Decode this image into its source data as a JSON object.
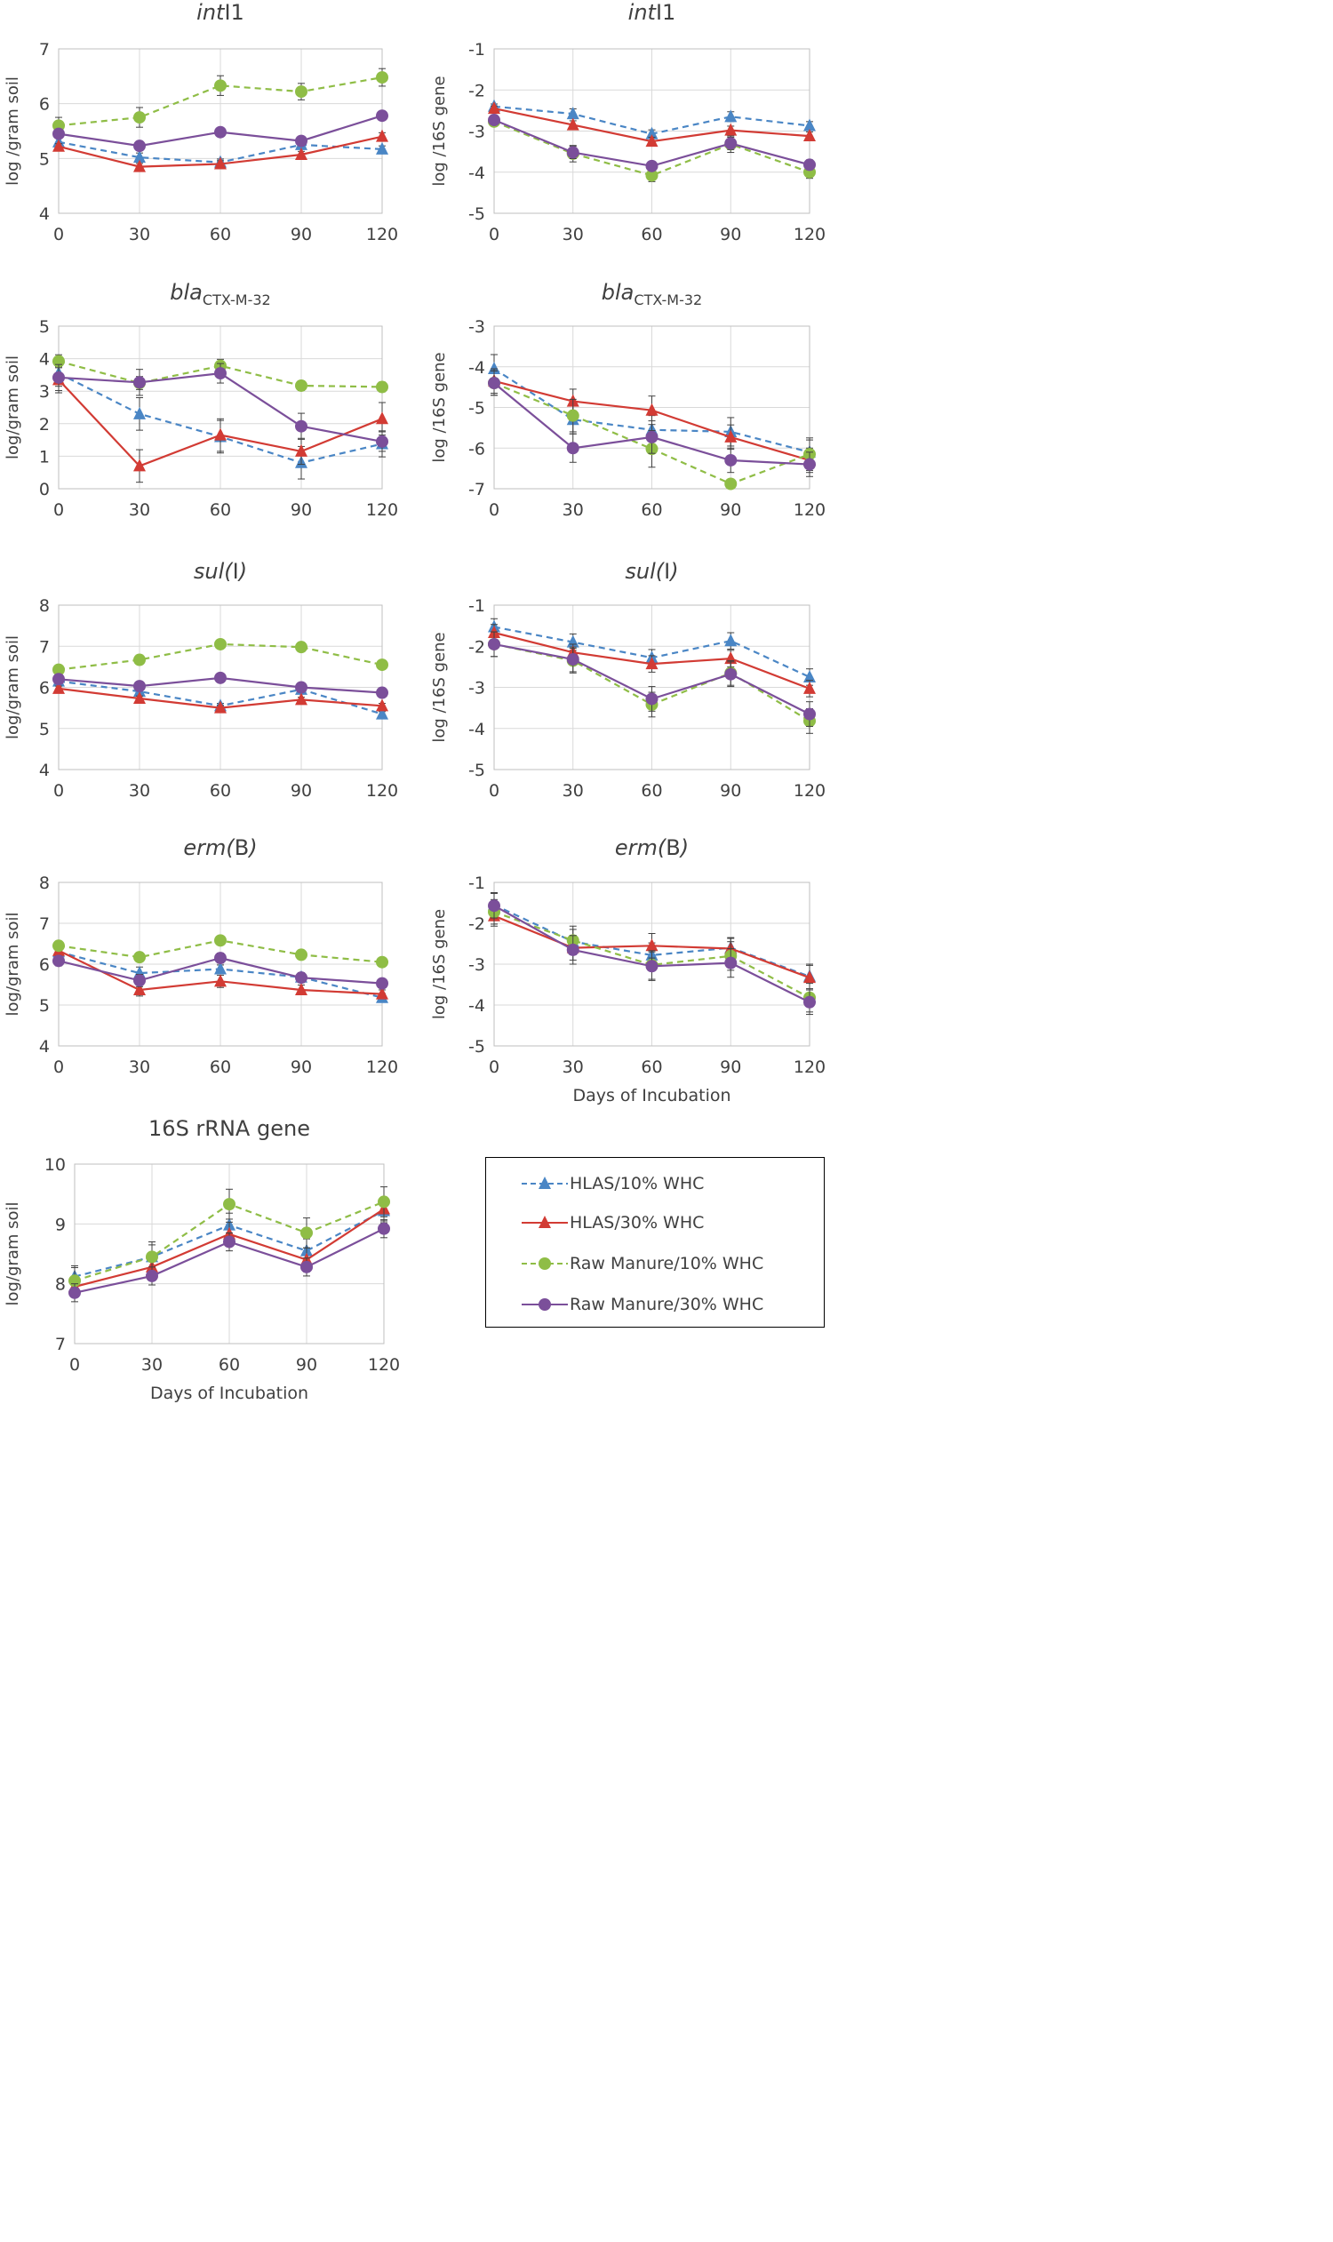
{
  "series_styles": [
    {
      "name": "HLAS/10% WHC",
      "color": "#4a86c5",
      "dashed": true,
      "marker": "triangle"
    },
    {
      "name": "HLAS/30% WHC",
      "color": "#d23b34",
      "dashed": false,
      "marker": "triangle"
    },
    {
      "name": "Raw Manure/10% WHC",
      "color": "#8fbd46",
      "dashed": true,
      "marker": "circle"
    },
    {
      "name": "Raw Manure/30% WHC",
      "color": "#7b4f9a",
      "dashed": false,
      "marker": "circle"
    }
  ],
  "legend": {
    "items": [
      "HLAS/10% WHC",
      "HLAS/30% WHC",
      "Raw Manure/10% WHC",
      "Raw Manure/30% WHC"
    ]
  },
  "chart_data": [
    {
      "type": "line",
      "id": "intl1-soil",
      "title_parts": [
        {
          "t": "int",
          "style": "italic"
        },
        {
          "t": "I1",
          "style": "normal"
        }
      ],
      "xlabel": "",
      "ylabel": "log /gram soil",
      "x": [
        0,
        30,
        60,
        90,
        120
      ],
      "ylim": [
        4,
        7
      ],
      "yticks": [
        4,
        5,
        6,
        7
      ],
      "series": [
        {
          "name": "HLAS/10% WHC",
          "values": [
            5.3,
            5.02,
            4.93,
            5.25,
            5.17
          ],
          "errors": [
            0.07,
            0.08,
            0.06,
            0.07,
            0.06
          ]
        },
        {
          "name": "HLAS/30% WHC",
          "values": [
            5.22,
            4.85,
            4.9,
            5.07,
            5.4
          ],
          "errors": [
            0.05,
            0.06,
            0.06,
            0.06,
            0.07
          ]
        },
        {
          "name": "Raw Manure/10% WHC",
          "values": [
            5.6,
            5.75,
            6.33,
            6.22,
            6.48
          ],
          "errors": [
            0.15,
            0.18,
            0.18,
            0.15,
            0.16
          ]
        },
        {
          "name": "Raw Manure/30% WHC",
          "values": [
            5.45,
            5.23,
            5.48,
            5.32,
            5.78
          ],
          "errors": [
            0.07,
            0.07,
            0.07,
            0.07,
            0.06
          ]
        }
      ]
    },
    {
      "type": "line",
      "id": "intl1-16s",
      "title_parts": [
        {
          "t": "int",
          "style": "italic"
        },
        {
          "t": "I1",
          "style": "normal"
        }
      ],
      "xlabel": "",
      "ylabel": "log /16S gene",
      "x": [
        0,
        30,
        60,
        90,
        120
      ],
      "ylim": [
        -5,
        -1
      ],
      "yticks": [
        -5,
        -4,
        -3,
        -2,
        -1
      ],
      "series": [
        {
          "name": "HLAS/10% WHC",
          "values": [
            -2.4,
            -2.58,
            -3.07,
            -2.65,
            -2.87
          ],
          "errors": [
            0.06,
            0.12,
            0.1,
            0.12,
            0.1
          ]
        },
        {
          "name": "HLAS/30% WHC",
          "values": [
            -2.45,
            -2.85,
            -3.25,
            -2.98,
            -3.12
          ],
          "errors": [
            0.06,
            0.1,
            0.1,
            0.1,
            0.1
          ]
        },
        {
          "name": "Raw Manure/10% WHC",
          "values": [
            -2.77,
            -3.55,
            -4.08,
            -3.32,
            -4.0
          ],
          "errors": [
            0.1,
            0.2,
            0.15,
            0.2,
            0.15
          ]
        },
        {
          "name": "Raw Manure/30% WHC",
          "values": [
            -2.73,
            -3.52,
            -3.85,
            -3.3,
            -3.82
          ],
          "errors": [
            0.1,
            0.15,
            0.1,
            0.15,
            0.12
          ]
        }
      ]
    },
    {
      "type": "line",
      "id": "bla-soil",
      "title_parts": [
        {
          "t": "bla",
          "style": "italic"
        },
        {
          "t": "CTX-M-32",
          "style": "sub"
        }
      ],
      "xlabel": "",
      "ylabel": "log/gram soil",
      "x": [
        0,
        30,
        60,
        90,
        120
      ],
      "ylim": [
        0,
        5
      ],
      "yticks": [
        0,
        1,
        2,
        3,
        4,
        5
      ],
      "series": [
        {
          "name": "HLAS/10% WHC",
          "values": [
            3.55,
            2.3,
            1.6,
            0.8,
            1.38
          ],
          "errors": [
            0.4,
            0.5,
            0.5,
            0.5,
            0.4
          ]
        },
        {
          "name": "HLAS/30% WHC",
          "values": [
            3.35,
            0.7,
            1.65,
            1.15,
            2.15
          ],
          "errors": [
            0.4,
            0.5,
            0.5,
            0.4,
            0.5
          ]
        },
        {
          "name": "Raw Manure/10% WHC",
          "values": [
            3.92,
            3.25,
            3.78,
            3.17,
            3.13
          ],
          "errors": [
            0.2,
            0.2,
            0.2,
            0.15,
            0.15
          ]
        },
        {
          "name": "Raw Manure/30% WHC",
          "values": [
            3.42,
            3.27,
            3.55,
            1.92,
            1.45
          ],
          "errors": [
            0.4,
            0.4,
            0.3,
            0.4,
            0.3
          ]
        }
      ]
    },
    {
      "type": "line",
      "id": "bla-16s",
      "title_parts": [
        {
          "t": "bla",
          "style": "italic"
        },
        {
          "t": "CTX-M-32",
          "style": "sub"
        }
      ],
      "xlabel": "",
      "ylabel": "log /16S gene",
      "x": [
        0,
        30,
        60,
        90,
        120
      ],
      "ylim": [
        -7,
        -3
      ],
      "yticks": [
        -7,
        -6,
        -5,
        -4,
        -3
      ],
      "series": [
        {
          "name": "HLAS/10% WHC",
          "values": [
            -4.05,
            -5.3,
            -5.55,
            -5.6,
            -6.1
          ],
          "errors": [
            0.35,
            0.35,
            0.35,
            0.35,
            0.3
          ]
        },
        {
          "name": "HLAS/30% WHC",
          "values": [
            -4.35,
            -4.85,
            -5.07,
            -5.73,
            -6.3
          ],
          "errors": [
            0.3,
            0.3,
            0.35,
            0.3,
            0.3
          ]
        },
        {
          "name": "Raw Manure/10% WHC",
          "values": [
            -4.4,
            -5.2,
            -6.02,
            -6.88,
            -6.15
          ],
          "errors": [
            0.3,
            0.4,
            0.45,
            0.1,
            0.4
          ]
        },
        {
          "name": "Raw Manure/30% WHC",
          "values": [
            -4.4,
            -6.0,
            -5.73,
            -6.3,
            -6.4
          ],
          "errors": [
            0.3,
            0.35,
            0.4,
            0.3,
            0.3
          ]
        }
      ]
    },
    {
      "type": "line",
      "id": "sul-soil",
      "title_parts": [
        {
          "t": "sul(",
          "style": "italic"
        },
        {
          "t": "I",
          "style": "normal"
        },
        {
          "t": ")",
          "style": "italic"
        }
      ],
      "xlabel": "",
      "ylabel": "log/gram soil",
      "x": [
        0,
        30,
        60,
        90,
        120
      ],
      "ylim": [
        4,
        8
      ],
      "yticks": [
        4,
        5,
        6,
        7,
        8
      ],
      "series": [
        {
          "name": "HLAS/10% WHC",
          "values": [
            6.15,
            5.9,
            5.55,
            5.95,
            5.35
          ],
          "errors": [
            0.06,
            0.06,
            0.06,
            0.06,
            0.06
          ]
        },
        {
          "name": "HLAS/30% WHC",
          "values": [
            5.97,
            5.73,
            5.5,
            5.7,
            5.55
          ],
          "errors": [
            0.06,
            0.06,
            0.06,
            0.06,
            0.06
          ]
        },
        {
          "name": "Raw Manure/10% WHC",
          "values": [
            6.43,
            6.67,
            7.05,
            6.98,
            6.55
          ],
          "errors": [
            0.06,
            0.06,
            0.06,
            0.06,
            0.06
          ]
        },
        {
          "name": "Raw Manure/30% WHC",
          "values": [
            6.2,
            6.03,
            6.23,
            6.0,
            5.87
          ],
          "errors": [
            0.06,
            0.06,
            0.06,
            0.06,
            0.06
          ]
        }
      ]
    },
    {
      "type": "line",
      "id": "sul-16s",
      "title_parts": [
        {
          "t": "sul(",
          "style": "italic"
        },
        {
          "t": "I",
          "style": "normal"
        },
        {
          "t": ")",
          "style": "italic"
        }
      ],
      "xlabel": "",
      "ylabel": "log /16S gene",
      "x": [
        0,
        30,
        60,
        90,
        120
      ],
      "ylim": [
        -5,
        -1
      ],
      "yticks": [
        -5,
        -4,
        -3,
        -2,
        -1
      ],
      "series": [
        {
          "name": "HLAS/10% WHC",
          "values": [
            -1.53,
            -1.9,
            -2.28,
            -1.87,
            -2.75
          ],
          "errors": [
            0.2,
            0.2,
            0.2,
            0.2,
            0.2
          ]
        },
        {
          "name": "HLAS/30% WHC",
          "values": [
            -1.67,
            -2.15,
            -2.43,
            -2.3,
            -3.03
          ],
          "errors": [
            0.2,
            0.2,
            0.2,
            0.2,
            0.2
          ]
        },
        {
          "name": "Raw Manure/10% WHC",
          "values": [
            -1.95,
            -2.35,
            -3.42,
            -2.65,
            -3.82
          ],
          "errors": [
            0.3,
            0.3,
            0.3,
            0.3,
            0.3
          ]
        },
        {
          "name": "Raw Manure/30% WHC",
          "values": [
            -1.95,
            -2.32,
            -3.28,
            -2.68,
            -3.65
          ],
          "errors": [
            0.3,
            0.3,
            0.3,
            0.3,
            0.3
          ]
        }
      ]
    },
    {
      "type": "line",
      "id": "erm-soil",
      "title_parts": [
        {
          "t": "erm(",
          "style": "italic"
        },
        {
          "t": "B",
          "style": "normal"
        },
        {
          "t": ")",
          "style": "italic"
        }
      ],
      "xlabel": "",
      "ylabel": "log/gram soil",
      "x": [
        0,
        30,
        60,
        90,
        120
      ],
      "ylim": [
        4,
        8
      ],
      "yticks": [
        4,
        5,
        6,
        7,
        8
      ],
      "series": [
        {
          "name": "HLAS/10% WHC",
          "values": [
            6.3,
            5.78,
            5.88,
            5.68,
            5.18
          ],
          "errors": [
            0.1,
            0.15,
            0.1,
            0.1,
            0.1
          ]
        },
        {
          "name": "HLAS/30% WHC",
          "values": [
            6.33,
            5.37,
            5.58,
            5.37,
            5.27
          ],
          "errors": [
            0.1,
            0.15,
            0.15,
            0.12,
            0.1
          ]
        },
        {
          "name": "Raw Manure/10% WHC",
          "values": [
            6.45,
            6.17,
            6.58,
            6.23,
            6.05
          ],
          "errors": [
            0.08,
            0.08,
            0.08,
            0.08,
            0.08
          ]
        },
        {
          "name": "Raw Manure/30% WHC",
          "values": [
            6.08,
            5.6,
            6.15,
            5.67,
            5.53
          ],
          "errors": [
            0.12,
            0.15,
            0.12,
            0.12,
            0.1
          ]
        }
      ]
    },
    {
      "type": "line",
      "id": "erm-16s",
      "title_parts": [
        {
          "t": "erm(",
          "style": "italic"
        },
        {
          "t": "B",
          "style": "normal"
        },
        {
          "t": ")",
          "style": "italic"
        }
      ],
      "xlabel": "Days of Incubation",
      "ylabel": "log /16S gene",
      "x": [
        0,
        30,
        60,
        90,
        120
      ],
      "ylim": [
        -5,
        -1
      ],
      "yticks": [
        -5,
        -4,
        -3,
        -2,
        -1
      ],
      "series": [
        {
          "name": "HLAS/10% WHC",
          "values": [
            -1.55,
            -2.45,
            -2.78,
            -2.6,
            -3.3
          ],
          "errors": [
            0.3,
            0.3,
            0.3,
            0.25,
            0.3
          ]
        },
        {
          "name": "HLAS/30% WHC",
          "values": [
            -1.82,
            -2.6,
            -2.55,
            -2.62,
            -3.33
          ],
          "errors": [
            0.25,
            0.3,
            0.3,
            0.25,
            0.3
          ]
        },
        {
          "name": "Raw Manure/10% WHC",
          "values": [
            -1.72,
            -2.42,
            -3.02,
            -2.8,
            -3.82
          ],
          "errors": [
            0.3,
            0.35,
            0.35,
            0.35,
            0.35
          ]
        },
        {
          "name": "Raw Manure/30% WHC",
          "values": [
            -1.57,
            -2.65,
            -3.05,
            -2.97,
            -3.93
          ],
          "errors": [
            0.3,
            0.35,
            0.35,
            0.35,
            0.3
          ]
        }
      ]
    },
    {
      "type": "line",
      "id": "16s-soil",
      "title_parts": [
        {
          "t": "16S rRNA gene",
          "style": "normal"
        }
      ],
      "xlabel": "Days of Incubation",
      "ylabel": "log/gram soil",
      "x": [
        0,
        30,
        60,
        90,
        120
      ],
      "ylim": [
        7,
        10
      ],
      "yticks": [
        7,
        8,
        9,
        10
      ],
      "series": [
        {
          "name": "HLAS/10% WHC",
          "values": [
            8.12,
            8.45,
            8.98,
            8.55,
            9.22
          ],
          "errors": [
            0.15,
            0.2,
            0.2,
            0.2,
            0.2
          ]
        },
        {
          "name": "HLAS/30% WHC",
          "values": [
            7.95,
            8.28,
            8.83,
            8.4,
            9.25
          ],
          "errors": [
            0.15,
            0.2,
            0.2,
            0.2,
            0.2
          ]
        },
        {
          "name": "Raw Manure/10% WHC",
          "values": [
            8.05,
            8.45,
            9.33,
            8.85,
            9.37
          ],
          "errors": [
            0.25,
            0.25,
            0.25,
            0.25,
            0.25
          ]
        },
        {
          "name": "Raw Manure/30% WHC",
          "values": [
            7.85,
            8.13,
            8.7,
            8.28,
            8.92
          ],
          "errors": [
            0.15,
            0.15,
            0.15,
            0.15,
            0.15
          ]
        }
      ]
    }
  ]
}
